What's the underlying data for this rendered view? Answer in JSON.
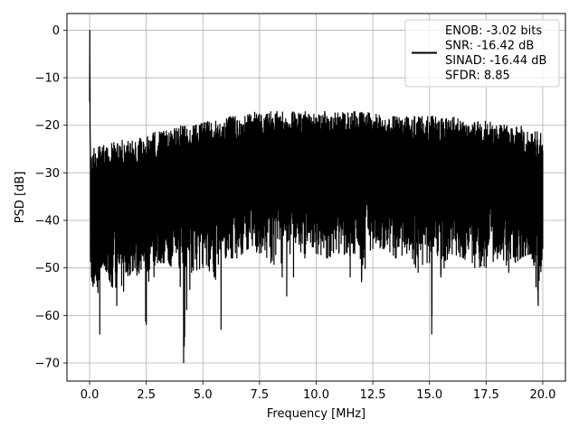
{
  "chart_data": {
    "type": "line",
    "title": "",
    "xlabel": "Frequency [MHz]",
    "ylabel": "PSD [dB]",
    "xlim": [
      -1.0,
      21.0
    ],
    "ylim": [
      -73.8,
      3.5
    ],
    "xticks": [
      0.0,
      2.5,
      5.0,
      7.5,
      10.0,
      12.5,
      15.0,
      17.5,
      20.0
    ],
    "xtick_labels": [
      "0.0",
      "2.5",
      "5.0",
      "7.5",
      "10.0",
      "12.5",
      "15.0",
      "17.5",
      "20.0"
    ],
    "yticks": [
      0,
      -10,
      -20,
      -30,
      -40,
      -50,
      -60,
      -70
    ],
    "ytick_labels": [
      "0",
      "−10",
      "−20",
      "−30",
      "−40",
      "−50",
      "−60",
      "−70"
    ],
    "grid": true,
    "legend_position": "top-right",
    "series": [
      {
        "color": "#000000",
        "x": [
          0.0,
          0.01,
          0.02,
          0.04,
          0.08,
          0.15,
          0.3,
          0.45,
          0.5,
          0.6,
          0.9,
          1.2,
          1.5,
          2.0,
          2.5,
          3.0,
          3.5,
          4.0,
          4.15,
          4.5,
          5.0,
          5.5,
          5.8,
          6.0,
          6.5,
          7.0,
          7.5,
          8.0,
          8.5,
          8.7,
          9.0,
          9.5,
          10.0,
          10.5,
          11.0,
          11.5,
          12.0,
          12.5,
          13.0,
          13.5,
          14.0,
          14.5,
          15.0,
          15.1,
          15.5,
          16.0,
          16.5,
          17.0,
          17.5,
          18.0,
          18.5,
          19.0,
          19.5,
          19.8,
          20.0
        ],
        "y_upper": [
          -15,
          0,
          -14,
          -26,
          -24,
          -24,
          -25,
          -24,
          -25,
          -24,
          -24,
          -23,
          -23,
          -23,
          -22,
          -21,
          -21,
          -20,
          -20,
          -20,
          -19,
          -19,
          -19,
          -18,
          -18,
          -17,
          -17,
          -17,
          -17,
          -17,
          -17,
          -17,
          -17,
          -17,
          -17,
          -17,
          -17,
          -17,
          -18,
          -18,
          -18,
          -18,
          -18,
          -18,
          -18,
          -18,
          -19,
          -19,
          -19,
          -19,
          -20,
          -20,
          -21,
          -21,
          -22
        ],
        "y_lower": [
          -15,
          -5,
          -20,
          -48,
          -52,
          -54,
          -52,
          -64,
          -50,
          -49,
          -53,
          -58,
          -55,
          -50,
          -62,
          -49,
          -49,
          -54,
          -70,
          -51,
          -50,
          -52,
          -63,
          -48,
          -48,
          -46,
          -47,
          -49,
          -52,
          -56,
          -52,
          -48,
          -47,
          -48,
          -47,
          -52,
          -53,
          -46,
          -46,
          -48,
          -47,
          -51,
          -49,
          -64,
          -52,
          -47,
          -48,
          -50,
          -50,
          -48,
          -51,
          -48,
          -47,
          -58,
          -46
        ]
      }
    ],
    "legend": {
      "lines": [
        "ENOB: -3.02 bits",
        "SNR: -16.42 dB",
        "SINAD: -16.44 dB",
        "SFDR: 8.85"
      ]
    }
  }
}
